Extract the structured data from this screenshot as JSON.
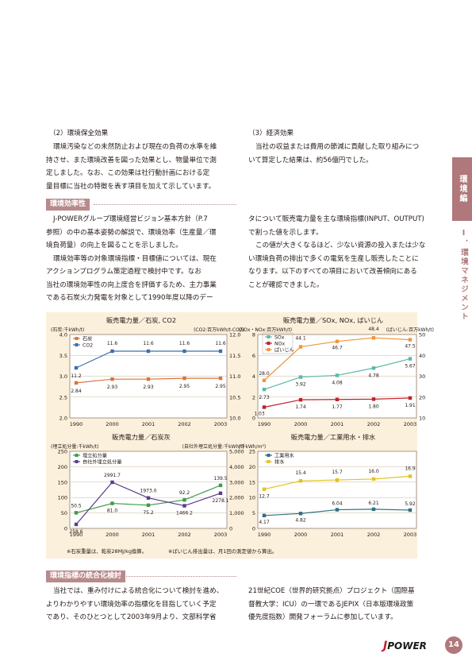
{
  "side_tab": {
    "section": "環境編",
    "subsection": "Ⅰ．環境マネジメント"
  },
  "col1": {
    "heading": "（2）環境保全効果",
    "lines": [
      "環境汚染などの未然防止および現在の負荷の水準を維",
      "持させ、また環境改善を図った効果とし、物量単位で測",
      "定しました。なお、この効果は社行動計画における定",
      "量目標に当社の特徴を表す項目を加えて示しています。"
    ]
  },
  "col2": {
    "heading": "（3）経済効果",
    "lines": [
      "当社の収益または費用の節減に貢献した取り組みにつ",
      "いて算定した結果は、約56億円でした。"
    ]
  },
  "section1": {
    "title": "環境効率性",
    "left_lines": [
      "J-POWERグループ環境経営ビジョン基本方針（P.7",
      "参照）の中の基本姿勢の解説で、環境効率（生産量／環",
      "境負荷量）の向上を図ることを示しました。",
      "環境効率等の対象環境指標・目標値については、現在",
      "アクションプログラム策定過程で検討中です。なお",
      "当社の環境効率性の向上度合を評価するため、主力事業",
      "である石炭火力発電を対象として1990年度以降のデー"
    ],
    "right_lines": [
      "タについて販売電力量を主な環境指標(INPUT、OUTPUT)",
      "で割った値を示します。",
      "この値が大きくなるほど、少ない資源の投入または少な",
      "い環境負荷の排出で多くの電気を生産し販売したことに",
      "なります。以下のすべての項目において改善傾向にある",
      "ことが確認できました。"
    ]
  },
  "chart_data": [
    {
      "type": "line",
      "title": "販売電力量／石炭, CO2",
      "ylabel_left": "(石炭:千kWh/t)",
      "ylabel_right": "(CO2:百万kWh/t-CO2)",
      "x": [
        "1990",
        "2000",
        "2001",
        "2002",
        "2003"
      ],
      "ylim_left": [
        2.0,
        4.0
      ],
      "ylim_right": [
        10.0,
        12.0
      ],
      "yticks_left": [
        "2.0",
        "2.5",
        "3.0",
        "3.5",
        "4.0"
      ],
      "yticks_right": [
        "10.0",
        "10.5",
        "11.0",
        "11.5",
        "12.0"
      ],
      "series": [
        {
          "name": "石炭",
          "axis": "left",
          "color": "#d9743a",
          "values": [
            2.84,
            2.93,
            2.93,
            2.95,
            2.95
          ],
          "labels": [
            "2.84",
            "2.93",
            "2.93",
            "2.95",
            "2.95"
          ]
        },
        {
          "name": "CO2",
          "axis": "right",
          "color": "#3f6fa8",
          "values": [
            11.2,
            11.6,
            11.6,
            11.6,
            11.6
          ],
          "labels": [
            "11.2",
            "11.6",
            "11.6",
            "11.6",
            "11.6"
          ]
        }
      ]
    },
    {
      "type": "line",
      "title": "販売電力量／SOx, NOx, ばいじん",
      "ylabel_left": "(SOx・NOx:百万kWh/t)",
      "ylabel_right": "(ばいじん:百万kWh/t)",
      "x": [
        "1990",
        "2000",
        "2001",
        "2002",
        "2003"
      ],
      "ylim_left": [
        0,
        8
      ],
      "ylim_right": [
        10,
        50
      ],
      "yticks_left": [
        "0",
        "2",
        "4",
        "6",
        "8"
      ],
      "yticks_right": [
        "10",
        "20",
        "30",
        "40",
        "50"
      ],
      "series": [
        {
          "name": "SOx",
          "axis": "left",
          "color": "#5cb8a8",
          "values": [
            2.73,
            3.92,
            4.08,
            4.78,
            5.67
          ],
          "labels": [
            "2.73",
            "3.92",
            "4.08",
            "4.78",
            "5.67"
          ]
        },
        {
          "name": "NOx",
          "axis": "left",
          "color": "#c0202a",
          "values": [
            1.03,
            1.74,
            1.77,
            1.8,
            1.91
          ],
          "labels": [
            "1.03",
            "1.74",
            "1.77",
            "1.80",
            "1.91"
          ]
        },
        {
          "name": "ばいじん",
          "axis": "right",
          "color": "#f0953a",
          "values": [
            28.0,
            44.1,
            46.7,
            48.4,
            47.5
          ],
          "labels": [
            "28.0",
            "44.1",
            "46.7",
            "48.4",
            "47.5"
          ]
        }
      ]
    },
    {
      "type": "line",
      "title": "販売電力量／石炭灰",
      "ylabel_left": "(埋立処分量:千kWh/t)",
      "ylabel_right": "(自社外埋立処分量:千kWh/t)",
      "x": [
        "1990",
        "2000",
        "2001",
        "2002",
        "2003"
      ],
      "ylim_left": [
        0,
        250
      ],
      "ylim_right": [
        0,
        5000
      ],
      "yticks_left": [
        "0",
        "50",
        "100",
        "150",
        "200",
        "250"
      ],
      "yticks_right": [
        "0",
        "1,000",
        "2,000",
        "3,000",
        "4,000",
        "5,000"
      ],
      "series": [
        {
          "name": "埋立処分量",
          "axis": "left",
          "color": "#3f9a4a",
          "values": [
            50.5,
            81.0,
            75.2,
            92.2,
            139.5
          ],
          "labels": [
            "50.5",
            "81.0",
            "75.2",
            "92.2",
            "139.5"
          ]
        },
        {
          "name": "自社外埋立処分量",
          "axis": "right",
          "color": "#5a3c8a",
          "values": [
            258.6,
            2991.7,
            1973.0,
            1466.2,
            2278.1
          ],
          "labels": [
            "258.6",
            "2991.7",
            "1973.0",
            "1466.2",
            "2278.1"
          ]
        }
      ]
    },
    {
      "type": "line",
      "title": "販売電力量／工業用水・排水",
      "ylabel_left": "(千kWh/m³)",
      "x": [
        "1990",
        "2000",
        "2001",
        "2002",
        "2003"
      ],
      "ylim_left": [
        0,
        25
      ],
      "yticks_left": [
        "0",
        "5",
        "10",
        "15",
        "20",
        "25"
      ],
      "series": [
        {
          "name": "工業用水",
          "axis": "left",
          "color": "#2f6f80",
          "values": [
            4.17,
            4.82,
            6.04,
            6.21,
            5.92
          ],
          "labels": [
            "4.17",
            "4.82",
            "6.04",
            "6.21",
            "5.92"
          ]
        },
        {
          "name": "排水",
          "axis": "left",
          "color": "#e6c21e",
          "values": [
            12.7,
            15.4,
            15.7,
            16.0,
            16.9
          ],
          "labels": [
            "12.7",
            "15.4",
            "15.7",
            "16.0",
            "16.9"
          ]
        }
      ]
    }
  ],
  "notes": {
    "left": "※石炭重量は、乾炭28MJ/kg換算。",
    "right": "※ばいじん排出量は、月1回の測定値から算出。"
  },
  "section2": {
    "title": "環境指標の統合化検討",
    "left_lines": [
      "当社では、重み付けによる統合化について検討を進め、",
      "よりわかりやすい環境効率の指標化を目指していく予定",
      "であり、そのひとつとして2003年9月より、文部科学省"
    ],
    "right_lines": [
      "21世紀COE（世界的研究拠点）プロジェクト（国際基",
      "督教大学：ICU）の一環であるJEPIX（日本版環境政策",
      "優先度指数）開発フォーラムに参加しています。"
    ]
  },
  "footer": {
    "logo_mark": "J",
    "logo_text": "POWER",
    "page": "14"
  }
}
